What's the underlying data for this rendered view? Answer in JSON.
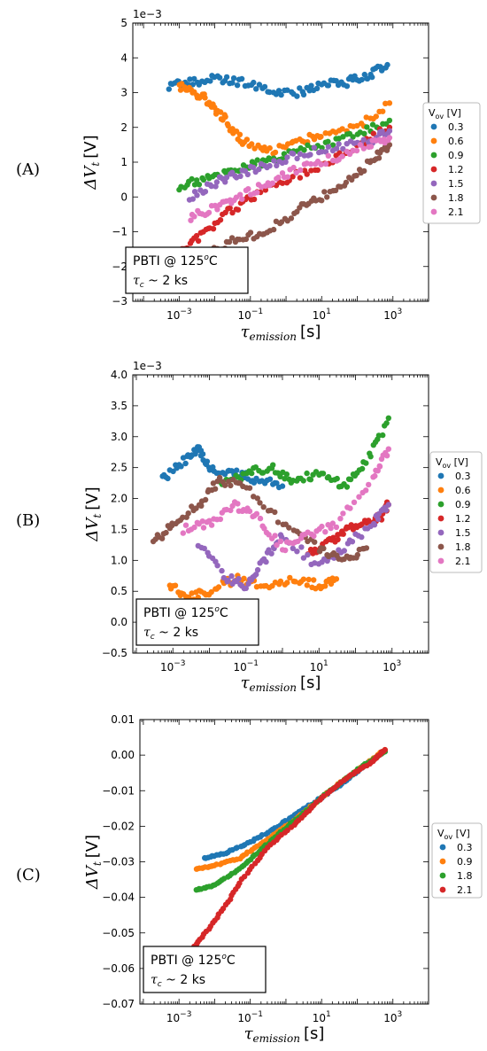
{
  "chart_data": [
    {
      "type": "scatter",
      "panel_label": "(A)",
      "sci_note": "1e−3",
      "x_scale": "log",
      "xlim": [
        5e-05,
        10000
      ],
      "ylim": [
        -3,
        5
      ],
      "x_ticks": [
        {
          "v": 0.001,
          "base": "10",
          "exp": "−3"
        },
        {
          "v": 0.1,
          "base": "10",
          "exp": "−1"
        },
        {
          "v": 10,
          "base": "10",
          "exp": "1"
        },
        {
          "v": 1000,
          "base": "10",
          "exp": "3"
        }
      ],
      "y_ticks": [
        {
          "v": -3,
          "label": "−3"
        },
        {
          "v": -2,
          "label": "−2"
        },
        {
          "v": -1,
          "label": "−1"
        },
        {
          "v": 0,
          "label": "0"
        },
        {
          "v": 1,
          "label": "1"
        },
        {
          "v": 2,
          "label": "2"
        },
        {
          "v": 3,
          "label": "3"
        },
        {
          "v": 4,
          "label": "4"
        },
        {
          "v": 5,
          "label": "5"
        }
      ],
      "xlabel_main": "τ",
      "xlabel_sub": "emission",
      "xlabel_unit": "[s]",
      "ylabel_main": "ΔV",
      "ylabel_sub": "t",
      "ylabel_unit": "[V]",
      "annotation_line1": "PBTI @ 125",
      "annotation_sup": "o",
      "annotation_line1_tail": "C",
      "annotation_line2_main": "τ",
      "annotation_line2_sub": "c",
      "annotation_line2_tail": " ~ 2 ks",
      "legend_title_main": "V",
      "legend_title_sub": "ov",
      "legend_title_unit": " [V]",
      "legend_position": "right",
      "series": [
        {
          "name": "0.3",
          "color": "#1f77b4",
          "points": [
            [
              0.0005,
              3.2
            ],
            [
              0.002,
              3.3
            ],
            [
              0.01,
              3.4
            ],
            [
              0.05,
              3.3
            ],
            [
              0.3,
              3.1
            ],
            [
              2,
              3.0
            ],
            [
              10,
              3.2
            ],
            [
              50,
              3.3
            ],
            [
              200,
              3.5
            ],
            [
              700,
              3.8
            ]
          ]
        },
        {
          "name": "0.6",
          "color": "#ff7f0e",
          "points": [
            [
              0.001,
              3.2
            ],
            [
              0.003,
              3.0
            ],
            [
              0.008,
              2.7
            ],
            [
              0.02,
              2.2
            ],
            [
              0.06,
              1.6
            ],
            [
              0.3,
              1.3
            ],
            [
              2,
              1.6
            ],
            [
              10,
              1.8
            ],
            [
              100,
              2.0
            ],
            [
              800,
              2.7
            ]
          ]
        },
        {
          "name": "0.9",
          "color": "#2ca02c",
          "points": [
            [
              0.001,
              0.3
            ],
            [
              0.005,
              0.5
            ],
            [
              0.03,
              0.8
            ],
            [
              0.2,
              1.0
            ],
            [
              1,
              1.2
            ],
            [
              10,
              1.5
            ],
            [
              100,
              1.8
            ],
            [
              800,
              2.2
            ]
          ]
        },
        {
          "name": "1.2",
          "color": "#d62728",
          "points": [
            [
              0.001,
              -1.6
            ],
            [
              0.004,
              -1.1
            ],
            [
              0.02,
              -0.5
            ],
            [
              0.1,
              0.0
            ],
            [
              1,
              0.5
            ],
            [
              10,
              0.9
            ],
            [
              100,
              1.5
            ],
            [
              800,
              2.0
            ]
          ]
        },
        {
          "name": "1.5",
          "color": "#9467bd",
          "points": [
            [
              0.002,
              0.0
            ],
            [
              0.01,
              0.4
            ],
            [
              0.05,
              0.7
            ],
            [
              0.3,
              0.9
            ],
            [
              2,
              1.2
            ],
            [
              20,
              1.4
            ],
            [
              200,
              1.6
            ],
            [
              800,
              1.9
            ]
          ]
        },
        {
          "name": "1.8",
          "color": "#8c564b",
          "points": [
            [
              0.01,
              -1.5
            ],
            [
              0.05,
              -1.2
            ],
            [
              0.3,
              -1.0
            ],
            [
              2,
              -0.4
            ],
            [
              10,
              0.0
            ],
            [
              60,
              0.5
            ],
            [
              300,
              1.1
            ],
            [
              800,
              1.5
            ]
          ]
        },
        {
          "name": "2.1",
          "color": "#e377c2",
          "points": [
            [
              0.002,
              -0.6
            ],
            [
              0.01,
              -0.3
            ],
            [
              0.05,
              0.0
            ],
            [
              0.3,
              0.4
            ],
            [
              2,
              0.8
            ],
            [
              20,
              1.1
            ],
            [
              200,
              1.5
            ],
            [
              800,
              1.7
            ]
          ]
        }
      ]
    },
    {
      "type": "scatter",
      "panel_label": "(B)",
      "sci_note": "1e−3",
      "x_scale": "log",
      "xlim": [
        8e-05,
        10000
      ],
      "ylim": [
        -0.5,
        4.0
      ],
      "x_ticks": [
        {
          "v": 0.001,
          "base": "10",
          "exp": "−3"
        },
        {
          "v": 0.1,
          "base": "10",
          "exp": "−1"
        },
        {
          "v": 10,
          "base": "10",
          "exp": "1"
        },
        {
          "v": 1000,
          "base": "10",
          "exp": "3"
        }
      ],
      "y_ticks": [
        {
          "v": -0.5,
          "label": "−0.5"
        },
        {
          "v": 0.0,
          "label": "0.0"
        },
        {
          "v": 0.5,
          "label": "0.5"
        },
        {
          "v": 1.0,
          "label": "1.0"
        },
        {
          "v": 1.5,
          "label": "1.5"
        },
        {
          "v": 2.0,
          "label": "2.0"
        },
        {
          "v": 2.5,
          "label": "2.5"
        },
        {
          "v": 3.0,
          "label": "3.0"
        },
        {
          "v": 3.5,
          "label": "3.5"
        },
        {
          "v": 4.0,
          "label": "4.0"
        }
      ],
      "xlabel_main": "τ",
      "xlabel_sub": "emission",
      "xlabel_unit": "[s]",
      "ylabel_main": "ΔV",
      "ylabel_sub": "t",
      "ylabel_unit": "[V]",
      "annotation_line1": "PBTI @ 125",
      "annotation_sup": "o",
      "annotation_line1_tail": "C",
      "annotation_line2_main": "τ",
      "annotation_line2_sub": "c",
      "annotation_line2_tail": " ~ 2 ks",
      "legend_title_main": "V",
      "legend_title_sub": "ov",
      "legend_title_unit": " [V]",
      "legend_position": "right",
      "series": [
        {
          "name": "0.3",
          "color": "#1f77b4",
          "points": [
            [
              0.0005,
              2.3
            ],
            [
              0.002,
              2.6
            ],
            [
              0.005,
              2.8
            ],
            [
              0.01,
              2.5
            ],
            [
              0.05,
              2.4
            ],
            [
              0.2,
              2.3
            ],
            [
              1,
              2.2
            ]
          ]
        },
        {
          "name": "0.6",
          "color": "#ff7f0e",
          "points": [
            [
              0.0008,
              0.6
            ],
            [
              0.003,
              0.4
            ],
            [
              0.01,
              0.5
            ],
            [
              0.05,
              0.7
            ],
            [
              0.3,
              0.6
            ],
            [
              2,
              0.7
            ],
            [
              10,
              0.6
            ],
            [
              30,
              0.7
            ]
          ]
        },
        {
          "name": "0.9",
          "color": "#2ca02c",
          "points": [
            [
              0.02,
              2.2
            ],
            [
              0.1,
              2.4
            ],
            [
              0.5,
              2.5
            ],
            [
              2,
              2.3
            ],
            [
              10,
              2.4
            ],
            [
              50,
              2.2
            ],
            [
              200,
              2.6
            ],
            [
              800,
              3.3
            ]
          ]
        },
        {
          "name": "1.2",
          "color": "#d62728",
          "points": [
            [
              5,
              1.1
            ],
            [
              20,
              1.3
            ],
            [
              60,
              1.5
            ],
            [
              200,
              1.6
            ],
            [
              500,
              1.7
            ],
            [
              800,
              1.9
            ]
          ]
        },
        {
          "name": "1.5",
          "color": "#9467bd",
          "points": [
            [
              0.005,
              1.3
            ],
            [
              0.03,
              0.7
            ],
            [
              0.1,
              0.6
            ],
            [
              0.3,
              1.0
            ],
            [
              1,
              1.4
            ],
            [
              10,
              0.9
            ],
            [
              50,
              1.2
            ],
            [
              300,
              1.6
            ],
            [
              800,
              1.9
            ]
          ]
        },
        {
          "name": "1.8",
          "color": "#8c564b",
          "points": [
            [
              0.0003,
              1.3
            ],
            [
              0.001,
              1.6
            ],
            [
              0.005,
              1.9
            ],
            [
              0.02,
              2.3
            ],
            [
              0.1,
              2.2
            ],
            [
              1,
              1.6
            ],
            [
              10,
              1.2
            ],
            [
              50,
              1.0
            ],
            [
              200,
              1.2
            ]
          ]
        },
        {
          "name": "2.1",
          "color": "#e377c2",
          "points": [
            [
              0.002,
              1.5
            ],
            [
              0.01,
              1.6
            ],
            [
              0.05,
              1.9
            ],
            [
              0.2,
              1.7
            ],
            [
              1,
              1.2
            ],
            [
              5,
              1.4
            ],
            [
              30,
              1.6
            ],
            [
              300,
              2.3
            ],
            [
              800,
              2.8
            ]
          ]
        }
      ]
    },
    {
      "type": "scatter",
      "panel_label": "(C)",
      "sci_note": "",
      "x_scale": "log",
      "xlim": [
        8e-05,
        10000
      ],
      "ylim": [
        -0.07,
        0.01
      ],
      "x_ticks": [
        {
          "v": 0.001,
          "base": "10",
          "exp": "−3"
        },
        {
          "v": 0.1,
          "base": "10",
          "exp": "−1"
        },
        {
          "v": 10,
          "base": "10",
          "exp": "1"
        },
        {
          "v": 1000,
          "base": "10",
          "exp": "3"
        }
      ],
      "y_ticks": [
        {
          "v": -0.07,
          "label": "−0.07"
        },
        {
          "v": -0.06,
          "label": "−0.06"
        },
        {
          "v": -0.05,
          "label": "−0.05"
        },
        {
          "v": -0.04,
          "label": "−0.04"
        },
        {
          "v": -0.03,
          "label": "−0.03"
        },
        {
          "v": -0.02,
          "label": "−0.02"
        },
        {
          "v": -0.01,
          "label": "−0.01"
        },
        {
          "v": 0.0,
          "label": "0.00"
        },
        {
          "v": 0.01,
          "label": "0.01"
        }
      ],
      "xlabel_main": "τ",
      "xlabel_sub": "emission",
      "xlabel_unit": "[s]",
      "ylabel_main": "ΔV",
      "ylabel_sub": "t",
      "ylabel_unit": "[V]",
      "annotation_line1": "PBTI @ 125",
      "annotation_sup": "o",
      "annotation_line1_tail": "C",
      "annotation_line2_main": "τ",
      "annotation_line2_sub": "c",
      "annotation_line2_tail": " ~ 2 ks",
      "legend_title_main": "V",
      "legend_title_sub": "ov",
      "legend_title_unit": " [V]",
      "legend_position": "right",
      "series": [
        {
          "name": "0.3",
          "color": "#1f77b4",
          "points": [
            [
              0.005,
              -0.029
            ],
            [
              0.02,
              -0.0275
            ],
            [
              0.1,
              -0.0245
            ],
            [
              0.5,
              -0.0205
            ],
            [
              2,
              -0.0165
            ],
            [
              10,
              -0.012
            ],
            [
              50,
              -0.007
            ],
            [
              200,
              -0.002
            ],
            [
              600,
              0.001
            ]
          ]
        },
        {
          "name": "0.9",
          "color": "#ff7f0e",
          "points": [
            [
              0.003,
              -0.032
            ],
            [
              0.01,
              -0.031
            ],
            [
              0.05,
              -0.029
            ],
            [
              0.2,
              -0.025
            ],
            [
              1,
              -0.02
            ],
            [
              5,
              -0.0145
            ],
            [
              30,
              -0.008
            ],
            [
              150,
              -0.003
            ],
            [
              600,
              0.0015
            ]
          ]
        },
        {
          "name": "1.8",
          "color": "#2ca02c",
          "points": [
            [
              0.003,
              -0.038
            ],
            [
              0.01,
              -0.0365
            ],
            [
              0.05,
              -0.032
            ],
            [
              0.2,
              -0.0265
            ],
            [
              1,
              -0.0205
            ],
            [
              5,
              -0.0145
            ],
            [
              30,
              -0.008
            ],
            [
              150,
              -0.003
            ],
            [
              600,
              0.001
            ]
          ]
        },
        {
          "name": "2.1",
          "color": "#d62728",
          "points": [
            [
              0.001,
              -0.058
            ],
            [
              0.004,
              -0.052
            ],
            [
              0.015,
              -0.044
            ],
            [
              0.06,
              -0.035
            ],
            [
              0.3,
              -0.026
            ],
            [
              2,
              -0.019
            ],
            [
              10,
              -0.012
            ],
            [
              60,
              -0.006
            ],
            [
              250,
              -0.002
            ],
            [
              600,
              0.0015
            ]
          ]
        }
      ]
    }
  ]
}
